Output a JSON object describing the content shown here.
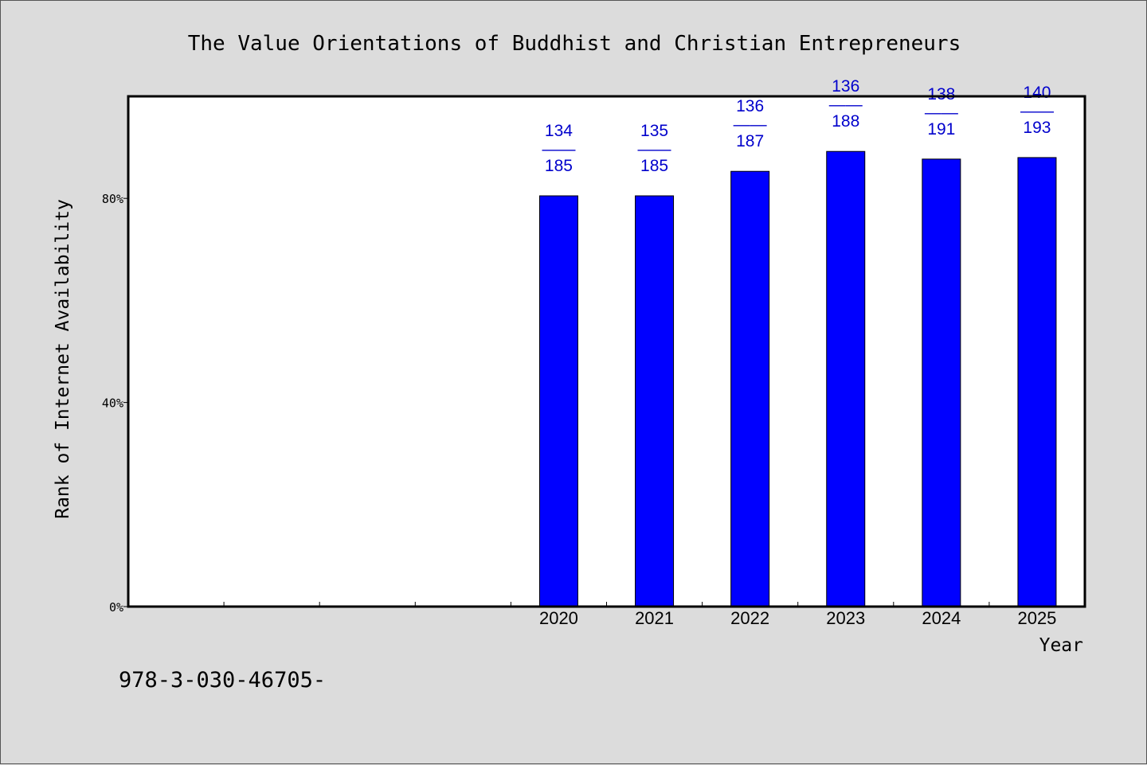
{
  "chart_data": {
    "type": "bar",
    "title": "The Value Orientations of Buddhist and Christian Entrepreneurs",
    "xlabel": "Year",
    "ylabel": "Rank of Internet Availability",
    "categories": [
      "",
      "",
      "",
      "",
      "2020",
      "2021",
      "2022",
      "2023",
      "2024",
      "2025"
    ],
    "values": [
      null,
      null,
      null,
      null,
      80.5,
      80.5,
      85.3,
      89.2,
      87.7,
      88.0
    ],
    "data_labels": [
      null,
      null,
      null,
      null,
      {
        "top": "134",
        "mid": "——",
        "bottom": "185"
      },
      {
        "top": "135",
        "mid": "——",
        "bottom": "185"
      },
      {
        "top": "136",
        "mid": "——",
        "bottom": "187"
      },
      {
        "top": "136",
        "mid": "——",
        "bottom": "188"
      },
      {
        "top": "138",
        "mid": "——",
        "bottom": "191"
      },
      {
        "top": "140",
        "mid": "——",
        "bottom": "193"
      }
    ],
    "ylim": [
      0,
      100
    ],
    "yticks": [
      0,
      40,
      80
    ],
    "ytick_labels": [
      "0%",
      "40%",
      "80%"
    ],
    "grid": false,
    "bar_color": "#0000ff",
    "label_color": "#0000cc"
  },
  "footer": {
    "text": "978-3-030-46705-"
  }
}
